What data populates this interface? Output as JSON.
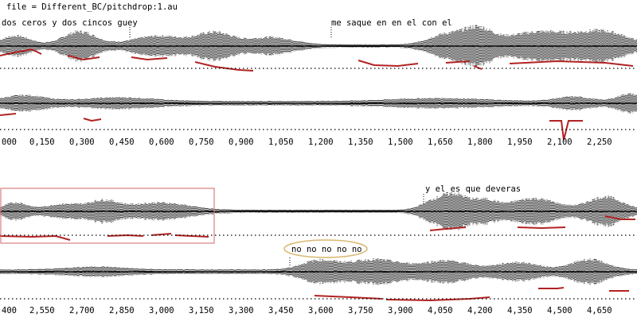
{
  "file_label": "file = Different_BC/pitchdrop:1.au",
  "strips": [
    {
      "id": "strip-1",
      "transcripts": [
        "dos ceros y dos cincos guey",
        "me saque en en el con el"
      ],
      "time_ticks": [
        "000",
        "0,150",
        "0,300",
        "0,450",
        "0,600",
        "0,750",
        "0,900",
        "1,050",
        "1,200",
        "1,350",
        "1,500",
        "1,650",
        "1,800",
        "1,950",
        "2,100",
        "2,250"
      ]
    },
    {
      "id": "strip-2",
      "transcripts": [
        "y el es que deveras",
        "no no no no no"
      ],
      "time_ticks": [
        "400",
        "2,550",
        "2,700",
        "2,850",
        "3,000",
        "3,150",
        "3,300",
        "3,450",
        "3,600",
        "3,750",
        "3,900",
        "4,050",
        "4,200",
        "4,350",
        "4,500",
        "4,650"
      ]
    }
  ],
  "colors": {
    "waveform": "#000000",
    "pitch_track": "#b22222",
    "selection_box": "#d98080",
    "highlight_ellipse": "#d9b870"
  }
}
